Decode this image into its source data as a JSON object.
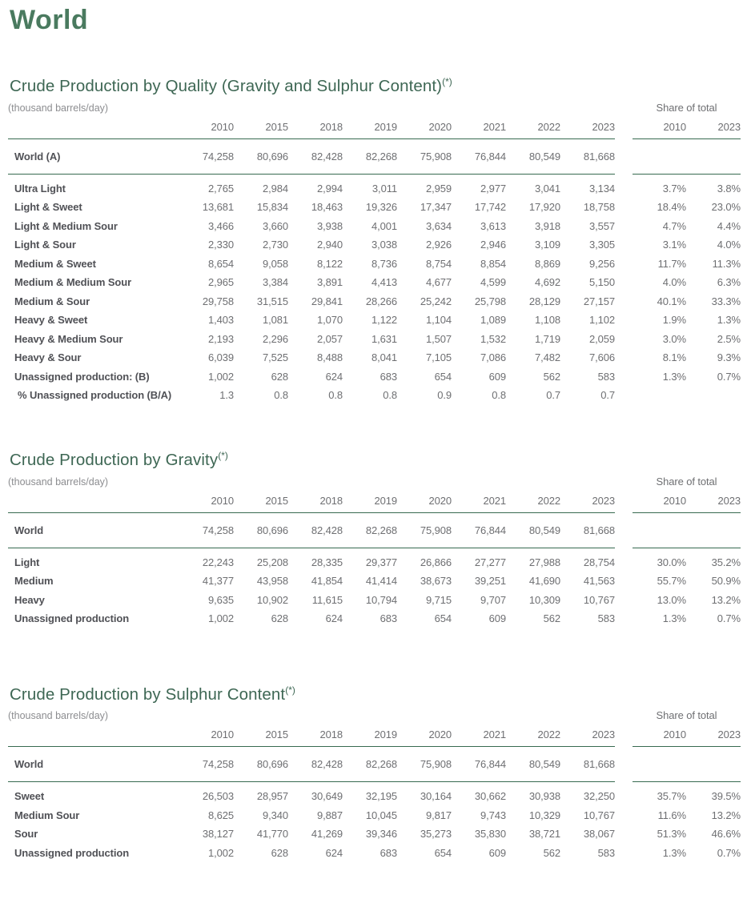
{
  "page": {
    "title": "World"
  },
  "shared": {
    "unit": "(thousand barrels/day)",
    "share_label": "Share of total",
    "years": [
      "2010",
      "2015",
      "2018",
      "2019",
      "2020",
      "2021",
      "2022",
      "2023"
    ],
    "share_years": [
      "2010",
      "2023"
    ]
  },
  "tables": [
    {
      "title": "Crude Production by Quality (Gravity and Sulphur Content)",
      "superscript": "(*)",
      "world_row": {
        "label": "World (A)",
        "values": [
          "74,258",
          "80,696",
          "82,428",
          "82,268",
          "75,908",
          "76,844",
          "80,549",
          "81,668"
        ]
      },
      "rows": [
        {
          "label": "Ultra Light",
          "values": [
            "2,765",
            "2,984",
            "2,994",
            "3,011",
            "2,959",
            "2,977",
            "3,041",
            "3,134"
          ],
          "shares": [
            "3.7%",
            "3.8%"
          ]
        },
        {
          "label": "Light & Sweet",
          "values": [
            "13,681",
            "15,834",
            "18,463",
            "19,326",
            "17,347",
            "17,742",
            "17,920",
            "18,758"
          ],
          "shares": [
            "18.4%",
            "23.0%"
          ]
        },
        {
          "label": "Light & Medium Sour",
          "values": [
            "3,466",
            "3,660",
            "3,938",
            "4,001",
            "3,634",
            "3,613",
            "3,918",
            "3,557"
          ],
          "shares": [
            "4.7%",
            "4.4%"
          ]
        },
        {
          "label": "Light & Sour",
          "values": [
            "2,330",
            "2,730",
            "2,940",
            "3,038",
            "2,926",
            "2,946",
            "3,109",
            "3,305"
          ],
          "shares": [
            "3.1%",
            "4.0%"
          ]
        },
        {
          "label": "Medium & Sweet",
          "values": [
            "8,654",
            "9,058",
            "8,122",
            "8,736",
            "8,754",
            "8,854",
            "8,869",
            "9,256"
          ],
          "shares": [
            "11.7%",
            "11.3%"
          ]
        },
        {
          "label": "Medium & Medium Sour",
          "values": [
            "2,965",
            "3,384",
            "3,891",
            "4,413",
            "4,677",
            "4,599",
            "4,692",
            "5,150"
          ],
          "shares": [
            "4.0%",
            "6.3%"
          ]
        },
        {
          "label": "Medium & Sour",
          "values": [
            "29,758",
            "31,515",
            "29,841",
            "28,266",
            "25,242",
            "25,798",
            "28,129",
            "27,157"
          ],
          "shares": [
            "40.1%",
            "33.3%"
          ]
        },
        {
          "label": "Heavy & Sweet",
          "values": [
            "1,403",
            "1,081",
            "1,070",
            "1,122",
            "1,104",
            "1,089",
            "1,108",
            "1,102"
          ],
          "shares": [
            "1.9%",
            "1.3%"
          ]
        },
        {
          "label": "Heavy & Medium Sour",
          "values": [
            "2,193",
            "2,296",
            "2,057",
            "1,631",
            "1,507",
            "1,532",
            "1,719",
            "2,059"
          ],
          "shares": [
            "3.0%",
            "2.5%"
          ]
        },
        {
          "label": "Heavy & Sour",
          "values": [
            "6,039",
            "7,525",
            "8,488",
            "8,041",
            "7,105",
            "7,086",
            "7,482",
            "7,606"
          ],
          "shares": [
            "8.1%",
            "9.3%"
          ]
        },
        {
          "label": "Unassigned production: (B)",
          "values": [
            "1,002",
            "628",
            "624",
            "683",
            "654",
            "609",
            "562",
            "583"
          ],
          "shares": [
            "1.3%",
            "0.7%"
          ]
        },
        {
          "label": "% Unassigned production (B/A)",
          "values": [
            "1.3",
            "0.8",
            "0.8",
            "0.8",
            "0.9",
            "0.8",
            "0.7",
            "0.7"
          ],
          "shares": [
            "",
            ""
          ],
          "indent": true
        }
      ]
    },
    {
      "title": "Crude Production by Gravity",
      "superscript": "(*)",
      "world_row": {
        "label": "World",
        "values": [
          "74,258",
          "80,696",
          "82,428",
          "82,268",
          "75,908",
          "76,844",
          "80,549",
          "81,668"
        ]
      },
      "rows": [
        {
          "label": "Light",
          "values": [
            "22,243",
            "25,208",
            "28,335",
            "29,377",
            "26,866",
            "27,277",
            "27,988",
            "28,754"
          ],
          "shares": [
            "30.0%",
            "35.2%"
          ]
        },
        {
          "label": "Medium",
          "values": [
            "41,377",
            "43,958",
            "41,854",
            "41,414",
            "38,673",
            "39,251",
            "41,690",
            "41,563"
          ],
          "shares": [
            "55.7%",
            "50.9%"
          ]
        },
        {
          "label": "Heavy",
          "values": [
            "9,635",
            "10,902",
            "11,615",
            "10,794",
            "9,715",
            "9,707",
            "10,309",
            "10,767"
          ],
          "shares": [
            "13.0%",
            "13.2%"
          ]
        },
        {
          "label": "Unassigned production",
          "values": [
            "1,002",
            "628",
            "624",
            "683",
            "654",
            "609",
            "562",
            "583"
          ],
          "shares": [
            "1.3%",
            "0.7%"
          ]
        }
      ]
    },
    {
      "title": "Crude Production by Sulphur Content",
      "superscript": "(*)",
      "world_row": {
        "label": "World",
        "values": [
          "74,258",
          "80,696",
          "82,428",
          "82,268",
          "75,908",
          "76,844",
          "80,549",
          "81,668"
        ]
      },
      "rows": [
        {
          "label": "Sweet",
          "values": [
            "26,503",
            "28,957",
            "30,649",
            "32,195",
            "30,164",
            "30,662",
            "30,938",
            "32,250"
          ],
          "shares": [
            "35.7%",
            "39.5%"
          ]
        },
        {
          "label": "Medium Sour",
          "values": [
            "8,625",
            "9,340",
            "9,887",
            "10,045",
            "9,817",
            "9,743",
            "10,329",
            "10,767"
          ],
          "shares": [
            "11.6%",
            "13.2%"
          ]
        },
        {
          "label": "Sour",
          "values": [
            "38,127",
            "41,770",
            "41,269",
            "39,346",
            "35,273",
            "35,830",
            "38,721",
            "38,067"
          ],
          "shares": [
            "51.3%",
            "46.6%"
          ]
        },
        {
          "label": "Unassigned production",
          "values": [
            "1,002",
            "628",
            "624",
            "683",
            "654",
            "609",
            "562",
            "583"
          ],
          "shares": [
            "1.3%",
            "0.7%"
          ]
        }
      ]
    }
  ]
}
